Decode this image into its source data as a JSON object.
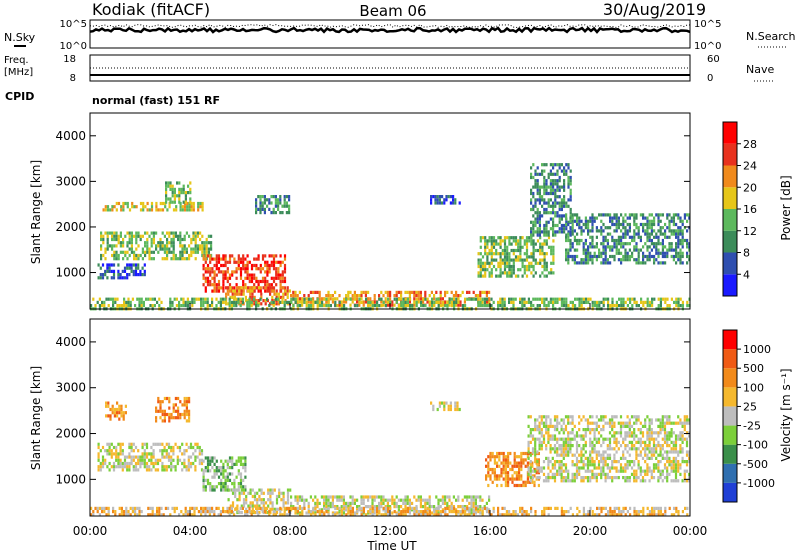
{
  "header": {
    "station": "Kodiak (fitACF)",
    "beam": "Beam 06",
    "date": "30/Aug/2019"
  },
  "noise_panel": {
    "left_label": "N.Sky",
    "right_label": "N.Search",
    "left_ticks": [
      "10^5",
      "10^0"
    ],
    "right_ticks": [
      "10^5",
      "10^0"
    ]
  },
  "freq_panel": {
    "left_label_1": "Freq.",
    "left_label_2": "[MHz]",
    "right_label": "Nave",
    "left_ticks": [
      "18",
      "8"
    ],
    "right_ticks": [
      "60",
      "0"
    ],
    "freq_ylim": [
      8,
      18
    ],
    "nave_ylim": [
      0,
      60
    ]
  },
  "cpid": {
    "label": "CPID",
    "text": "normal (fast) 151 RF"
  },
  "axes": {
    "ylabel": "Slant Range [km]",
    "yticks": [
      "1000",
      "2000",
      "3000",
      "4000"
    ],
    "ylim": [
      200,
      4500
    ],
    "xlabel": "Time UT",
    "xticks": [
      "00:00",
      "04:00",
      "08:00",
      "12:00",
      "16:00",
      "20:00",
      "00:00"
    ],
    "xlim_hours": [
      0,
      24
    ]
  },
  "power_scale": {
    "label": "Power [dB]",
    "ticks": [
      "4",
      "8",
      "12",
      "16",
      "20",
      "24",
      "28"
    ],
    "colors": [
      "#1a1aff",
      "#2f4fb0",
      "#3c8c5a",
      "#5cb85c",
      "#e6c619",
      "#f08a1c",
      "#e8321e",
      "#ff0000"
    ]
  },
  "velocity_scale": {
    "label": "Velocity [m s⁻¹]",
    "ticks": [
      "1000",
      "500",
      "100",
      "25",
      "-25",
      "-100",
      "-500",
      "-1000"
    ],
    "colors": [
      "#1f3fd6",
      "#2f6fb0",
      "#3a8f4a",
      "#7ccf3a",
      "#bdbdbd",
      "#f5b82e",
      "#f28a1a",
      "#f05a14",
      "#ff0000"
    ]
  },
  "chart_data": [
    {
      "type": "heatmap",
      "title": "Power",
      "xlabel": "Time UT",
      "ylabel": "Slant Range [km]",
      "xlim": [
        0,
        24
      ],
      "ylim": [
        200,
        4500
      ],
      "colorbar_label": "Power [dB]",
      "colorbar_ticks": [
        4,
        8,
        12,
        16,
        20,
        24,
        28
      ],
      "regions": [
        {
          "t": [
            0.4,
            4.8
          ],
          "r": [
            1300,
            1900
          ],
          "level": 3
        },
        {
          "t": [
            0.5,
            4.6
          ],
          "r": [
            2350,
            2550
          ],
          "level": 4
        },
        {
          "t": [
            3.0,
            4.0
          ],
          "r": [
            2550,
            3000
          ],
          "level": 3
        },
        {
          "t": [
            0.3,
            2.2
          ],
          "r": [
            900,
            1200
          ],
          "level": 1
        },
        {
          "t": [
            4.5,
            7.8
          ],
          "r": [
            600,
            1400
          ],
          "level": 6
        },
        {
          "t": [
            5.4,
            8.0
          ],
          "r": [
            300,
            700
          ],
          "level": 5
        },
        {
          "t": [
            6.6,
            8.0
          ],
          "r": [
            2300,
            2700
          ],
          "level": 2
        },
        {
          "t": [
            13.6,
            14.8
          ],
          "r": [
            2500,
            2700
          ],
          "level": 1
        },
        {
          "t": [
            15.5,
            18.5
          ],
          "r": [
            900,
            1800
          ],
          "level": 3
        },
        {
          "t": [
            17.6,
            19.2
          ],
          "r": [
            1800,
            3400
          ],
          "level": 2
        },
        {
          "t": [
            19.0,
            24.0
          ],
          "r": [
            1200,
            2300
          ],
          "level": 2
        },
        {
          "t": [
            8.0,
            16.0
          ],
          "r": [
            250,
            600
          ],
          "level": 5
        },
        {
          "t": [
            0.0,
            24.0
          ],
          "r": [
            200,
            450
          ],
          "level": 3
        }
      ]
    },
    {
      "type": "heatmap",
      "title": "Velocity",
      "xlabel": "Time UT",
      "ylabel": "Slant Range [km]",
      "xlim": [
        0,
        24
      ],
      "ylim": [
        200,
        4500
      ],
      "colorbar_label": "Velocity [m s⁻¹]",
      "colorbar_ticks": [
        1000,
        500,
        100,
        25,
        -25,
        -100,
        -500,
        -1000
      ],
      "regions": [
        {
          "t": [
            0.3,
            4.5
          ],
          "r": [
            1200,
            1800
          ],
          "level": 4
        },
        {
          "t": [
            0.6,
            1.4
          ],
          "r": [
            2300,
            2700
          ],
          "level": 6
        },
        {
          "t": [
            2.6,
            4.0
          ],
          "r": [
            2300,
            2800
          ],
          "level": 6
        },
        {
          "t": [
            4.5,
            6.2
          ],
          "r": [
            800,
            1500
          ],
          "level": 3
        },
        {
          "t": [
            5.5,
            8.0
          ],
          "r": [
            300,
            800
          ],
          "level": 4
        },
        {
          "t": [
            13.6,
            14.8
          ],
          "r": [
            2500,
            2700
          ],
          "level": 4
        },
        {
          "t": [
            15.8,
            18.0
          ],
          "r": [
            900,
            1600
          ],
          "level": 6
        },
        {
          "t": [
            17.5,
            24.0
          ],
          "r": [
            1000,
            2400
          ],
          "level": 4
        },
        {
          "t": [
            8.0,
            16.0
          ],
          "r": [
            250,
            650
          ],
          "level": 4
        },
        {
          "t": [
            0.0,
            24.0
          ],
          "r": [
            200,
            400
          ],
          "level": 5
        }
      ]
    }
  ]
}
